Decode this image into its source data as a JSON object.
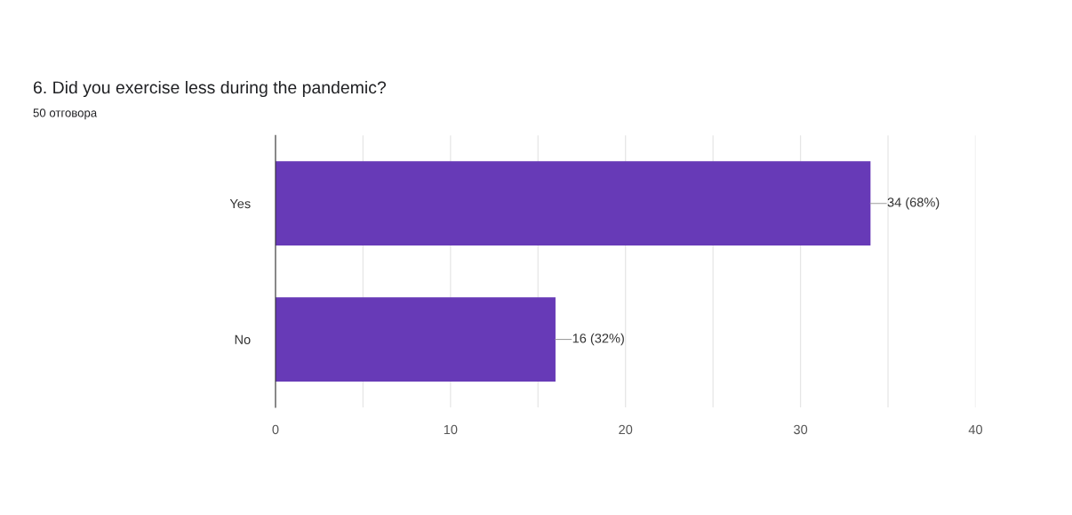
{
  "chart_data": {
    "type": "bar",
    "orientation": "horizontal",
    "title": "6. Did you exercise less during the pandemic?",
    "subtitle": "50 отговора",
    "categories": [
      "Yes",
      "No"
    ],
    "values": [
      34,
      16
    ],
    "color": "#673ab7",
    "value_labels": [
      "34 (68%)",
      "16 (32%)"
    ],
    "xlim": [
      0,
      40
    ],
    "xticks": [
      0,
      {
        "value": 5,
        "label": null
      },
      10,
      {
        "value": 15,
        "label": null
      },
      20,
      {
        "value": 25,
        "label": null
      },
      30,
      {
        "value": 35,
        "label": null
      },
      40
    ],
    "grid": "x"
  }
}
